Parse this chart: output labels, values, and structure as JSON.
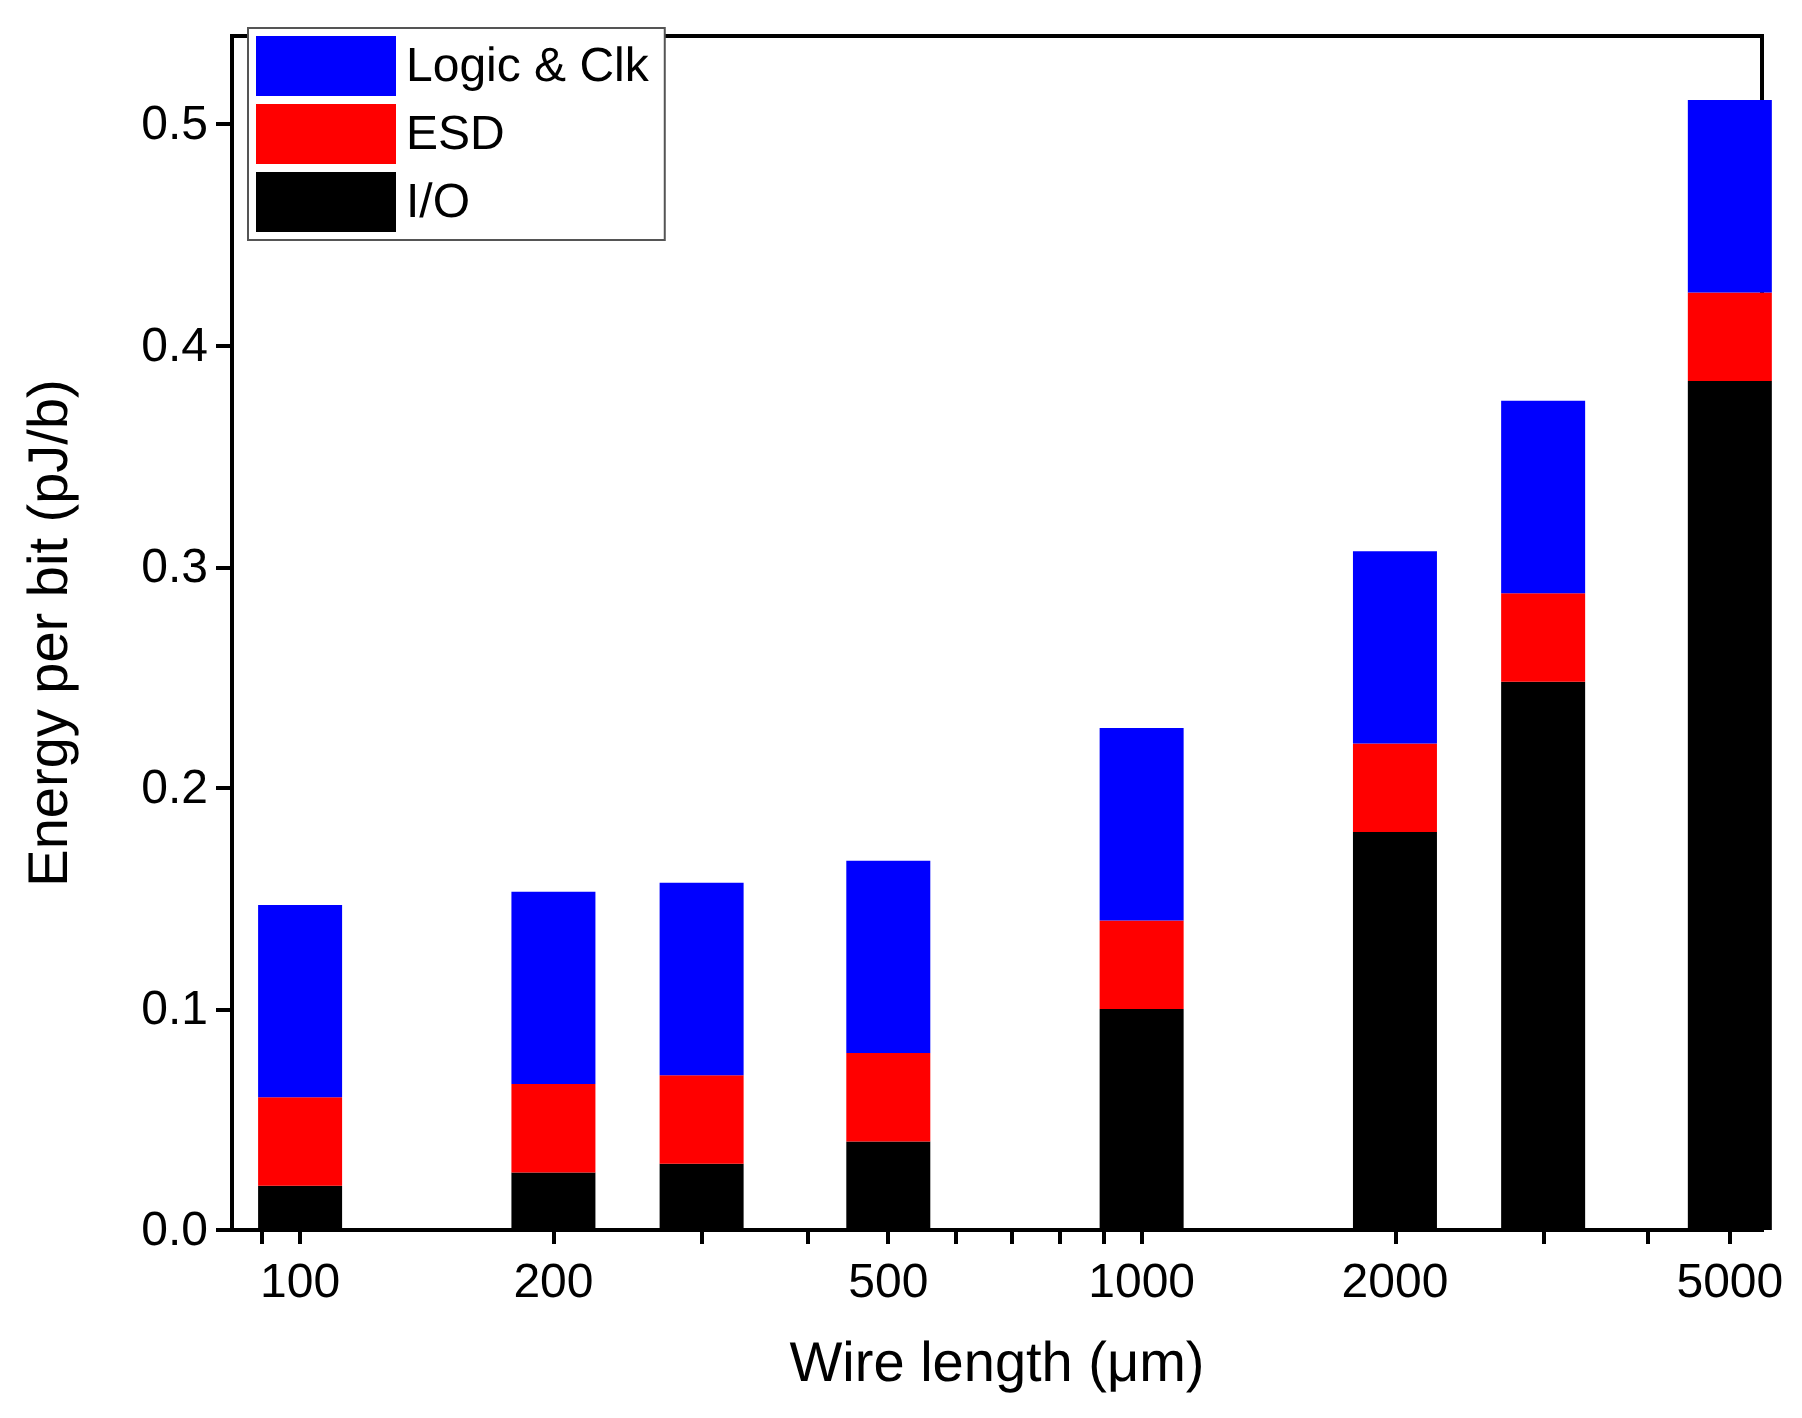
{
  "chart_data": {
    "type": "bar",
    "stacked": true,
    "xlabel": "Wire length (μm)",
    "ylabel": "Energy per bit (pJ/b)",
    "log": "x",
    "x": [
      100,
      200,
      300,
      500,
      1000,
      2000,
      3000,
      5000
    ],
    "series": [
      {
        "name": "I/O",
        "color": "#000000",
        "values": [
          0.02,
          0.026,
          0.03,
          0.04,
          0.1,
          0.18,
          0.248,
          0.384
        ]
      },
      {
        "name": "ESD",
        "color": "#ff0000",
        "values": [
          0.04,
          0.04,
          0.04,
          0.04,
          0.04,
          0.04,
          0.04,
          0.04
        ]
      },
      {
        "name": "Logic & Clk",
        "color": "#0000ff",
        "values": [
          0.087,
          0.087,
          0.087,
          0.087,
          0.087,
          0.087,
          0.087,
          0.087
        ]
      }
    ],
    "xlim": [
      83,
      5460
    ],
    "xticks": [
      {
        "value": 90,
        "label": null
      },
      100,
      200,
      {
        "value": 300,
        "label": null
      },
      {
        "value": 400,
        "label": null
      },
      500,
      {
        "value": 600,
        "label": null
      },
      {
        "value": 700,
        "label": null
      },
      {
        "value": 800,
        "label": null
      },
      {
        "value": 900,
        "label": null
      },
      1000,
      2000,
      {
        "value": 3000,
        "label": null
      },
      {
        "value": 4000,
        "label": null
      },
      5000
    ],
    "ylim": [
      0,
      0.54
    ],
    "yticks": [
      {
        "value": 0,
        "label": "0.0"
      },
      0.1,
      0.2,
      0.3,
      0.4,
      0.5
    ],
    "grid": false,
    "legend": "top left"
  }
}
